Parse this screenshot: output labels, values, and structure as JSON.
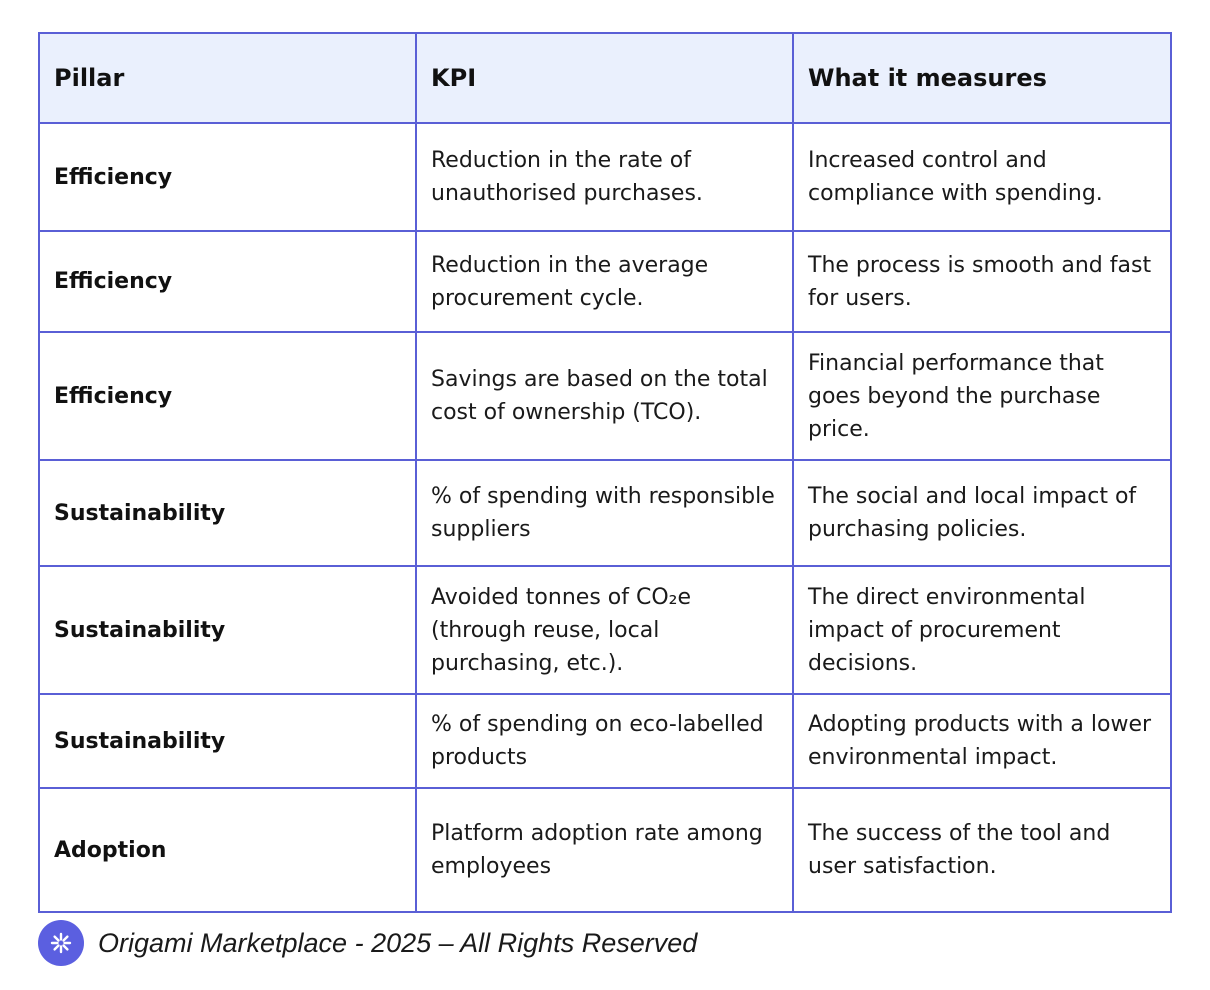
{
  "table": {
    "headers": [
      "Pillar",
      "KPI",
      "What it measures"
    ],
    "rows": [
      {
        "pillar": "Efficiency",
        "kpi": "Reduction in the rate of unauthorised purchases.",
        "measures": "Increased control and compliance with spending."
      },
      {
        "pillar": "Efficiency",
        "kpi": "Reduction in the average procurement cycle.",
        "measures": "The process is smooth and fast for users."
      },
      {
        "pillar": "Efficiency",
        "kpi": "Savings are based on the total cost of ownership (TCO).",
        "measures": "Financial performance that goes beyond the purchase price."
      },
      {
        "pillar": "Sustainability",
        "kpi": "% of spending with responsible suppliers",
        "measures": "The social and local impact of purchasing policies."
      },
      {
        "pillar": "Sustainability",
        "kpi": "Avoided tonnes of CO₂e (through reuse, local purchasing, etc.).",
        "measures": "The direct environmental impact of procurement decisions."
      },
      {
        "pillar": "Sustainability",
        "kpi": "% of spending on eco-labelled products",
        "measures": "Adopting products with a lower environmental impact."
      },
      {
        "pillar": "Adoption",
        "kpi": "Platform adoption rate among employees",
        "measures": "The success of the tool and user satisfaction."
      }
    ]
  },
  "footer": {
    "logo_icon": "origami-logo-icon",
    "text": "Origami Marketplace - 2025 – All Rights Reserved"
  },
  "colors": {
    "border": "#5a5fd6",
    "header_bg": "#eaf0fd",
    "logo_bg": "#5b5fe0"
  }
}
